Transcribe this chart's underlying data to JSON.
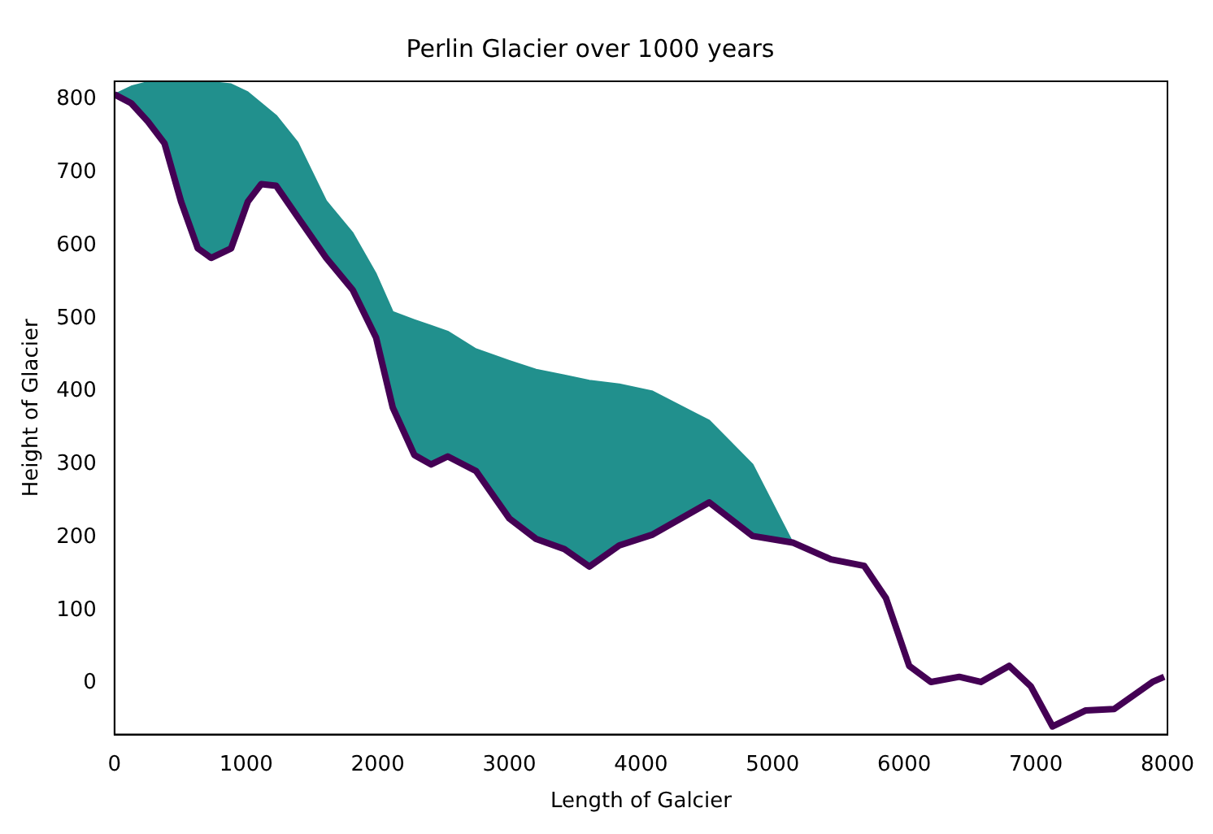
{
  "chart_data": {
    "type": "line",
    "title": "Perlin Glacier over 1000 years",
    "xlabel": "Length of Galcier",
    "ylabel": "Height of Glacier",
    "x": [
      0,
      127,
      253,
      380,
      506,
      633,
      734,
      886,
      1013,
      1114,
      1228,
      1392,
      1608,
      1810,
      1987,
      2114,
      2278,
      2405,
      2532,
      2747,
      3000,
      3203,
      3418,
      3608,
      3835,
      4089,
      4519,
      4848,
      5152,
      5443,
      5696,
      5861,
      6038,
      6203,
      6418,
      6582,
      6797,
      6962,
      7127,
      7380,
      7595,
      7886,
      7975
    ],
    "series": [
      {
        "type": "line",
        "color": "#440154",
        "values": [
          807,
          795,
          770,
          740,
          660,
          596,
          583,
          596,
          660,
          684,
          682,
          639,
          583,
          539,
          474,
          378,
          313,
          300,
          311,
          291,
          226,
          198,
          184,
          160,
          189,
          204,
          248,
          202,
          193,
          170,
          161,
          117,
          24,
          2,
          9,
          2,
          24,
          -4,
          -59,
          -37,
          -35,
          2,
          9
        ]
      },
      {
        "type": "area",
        "color": "#21908d",
        "values": [
          807,
          818,
          824,
          824,
          824,
          824,
          824,
          821,
          810,
          795,
          778,
          741,
          661,
          617,
          561,
          509,
          498,
          490,
          482,
          458,
          442,
          430,
          422,
          415,
          410,
          400,
          360,
          300,
          193,
          null,
          null,
          null,
          null,
          null,
          null,
          null,
          null,
          null,
          null,
          null,
          null,
          null,
          null
        ]
      }
    ],
    "xlim": [
      0,
      8000
    ],
    "xticks": [
      0,
      1000,
      2000,
      3000,
      4000,
      5000,
      6000,
      7000,
      8000
    ],
    "ylim": [
      -70,
      825
    ],
    "yticks": [
      0,
      100,
      200,
      300,
      400,
      500,
      600,
      700,
      800
    ],
    "grid": false,
    "legend": false
  }
}
